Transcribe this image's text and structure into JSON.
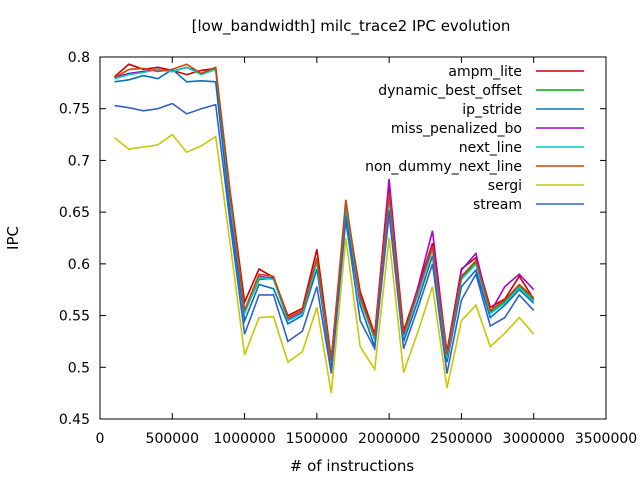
{
  "chart_data": {
    "type": "line",
    "title": "[low_bandwidth] milc_trace2 IPC evolution",
    "xlabel": "# of instructions",
    "ylabel": "IPC",
    "xlim": [
      0,
      3500000
    ],
    "ylim": [
      0.45,
      0.8
    ],
    "xticks": [
      0,
      500000,
      1000000,
      1500000,
      2000000,
      2500000,
      3000000,
      3500000
    ],
    "yticks": [
      0.45,
      0.5,
      0.55,
      0.6,
      0.65,
      0.7,
      0.75,
      0.8
    ],
    "ytick_labels": [
      "0.45",
      "0.5",
      "0.55",
      "0.6",
      "0.65",
      "0.7",
      "0.75",
      "0.8"
    ],
    "grid": false,
    "legend": "top-right",
    "x": [
      100000,
      200000,
      300000,
      400000,
      500000,
      600000,
      700000,
      800000,
      900000,
      1000000,
      1100000,
      1200000,
      1300000,
      1400000,
      1500000,
      1600000,
      1700000,
      1800000,
      1900000,
      2000000,
      2100000,
      2200000,
      2300000,
      2400000,
      2500000,
      2600000,
      2700000,
      2800000,
      2900000,
      3000000
    ],
    "series": [
      {
        "name": "ampm_lite",
        "color": "#cc0000",
        "values": [
          0.781,
          0.793,
          0.788,
          0.79,
          0.787,
          0.783,
          0.787,
          0.789,
          0.67,
          0.563,
          0.595,
          0.587,
          0.55,
          0.557,
          0.614,
          0.508,
          0.657,
          0.573,
          0.532,
          0.677,
          0.535,
          0.577,
          0.62,
          0.515,
          0.595,
          0.606,
          0.558,
          0.566,
          0.588,
          0.566
        ]
      },
      {
        "name": "dynamic_best_offset",
        "color": "#00aa00",
        "values": [
          0.78,
          0.784,
          0.786,
          0.788,
          0.786,
          0.79,
          0.784,
          0.788,
          0.665,
          0.553,
          0.585,
          0.586,
          0.546,
          0.553,
          0.603,
          0.505,
          0.657,
          0.566,
          0.527,
          0.665,
          0.53,
          0.572,
          0.615,
          0.51,
          0.586,
          0.601,
          0.553,
          0.563,
          0.578,
          0.565
        ]
      },
      {
        "name": "ip_stride",
        "color": "#0070c0",
        "values": [
          0.776,
          0.778,
          0.782,
          0.779,
          0.788,
          0.776,
          0.777,
          0.776,
          0.65,
          0.545,
          0.58,
          0.576,
          0.542,
          0.55,
          0.595,
          0.5,
          0.648,
          0.56,
          0.52,
          0.652,
          0.525,
          0.565,
          0.608,
          0.505,
          0.578,
          0.594,
          0.548,
          0.56,
          0.575,
          0.562
        ]
      },
      {
        "name": "miss_penalized_bo",
        "color": "#aa00cc",
        "values": [
          0.78,
          0.784,
          0.786,
          0.788,
          0.786,
          0.79,
          0.784,
          0.788,
          0.665,
          0.553,
          0.588,
          0.586,
          0.546,
          0.553,
          0.603,
          0.505,
          0.657,
          0.566,
          0.53,
          0.682,
          0.53,
          0.578,
          0.632,
          0.512,
          0.594,
          0.61,
          0.553,
          0.578,
          0.59,
          0.575
        ]
      },
      {
        "name": "next_line",
        "color": "#00cccc",
        "values": [
          0.779,
          0.783,
          0.785,
          0.788,
          0.786,
          0.79,
          0.783,
          0.788,
          0.664,
          0.552,
          0.587,
          0.585,
          0.545,
          0.552,
          0.602,
          0.504,
          0.656,
          0.565,
          0.528,
          0.664,
          0.529,
          0.571,
          0.614,
          0.509,
          0.585,
          0.6,
          0.552,
          0.562,
          0.577,
          0.564
        ]
      },
      {
        "name": "non_dummy_next_line",
        "color": "#cc4400",
        "values": [
          0.78,
          0.788,
          0.789,
          0.786,
          0.788,
          0.793,
          0.784,
          0.79,
          0.668,
          0.555,
          0.59,
          0.588,
          0.548,
          0.555,
          0.606,
          0.506,
          0.662,
          0.568,
          0.53,
          0.668,
          0.532,
          0.574,
          0.617,
          0.512,
          0.588,
          0.603,
          0.555,
          0.565,
          0.58,
          0.567
        ]
      },
      {
        "name": "sergi",
        "color": "#c8c800",
        "values": [
          0.722,
          0.711,
          0.713,
          0.715,
          0.725,
          0.708,
          0.714,
          0.723,
          0.62,
          0.512,
          0.548,
          0.549,
          0.505,
          0.515,
          0.558,
          0.475,
          0.625,
          0.52,
          0.498,
          0.625,
          0.495,
          0.535,
          0.578,
          0.48,
          0.545,
          0.56,
          0.52,
          0.533,
          0.548,
          0.532
        ]
      },
      {
        "name": "stream",
        "color": "#3060cc",
        "values": [
          0.753,
          0.751,
          0.748,
          0.75,
          0.755,
          0.745,
          0.75,
          0.754,
          0.64,
          0.532,
          0.57,
          0.57,
          0.525,
          0.535,
          0.578,
          0.494,
          0.642,
          0.545,
          0.518,
          0.648,
          0.518,
          0.558,
          0.6,
          0.494,
          0.565,
          0.59,
          0.54,
          0.548,
          0.57,
          0.555
        ]
      }
    ]
  }
}
